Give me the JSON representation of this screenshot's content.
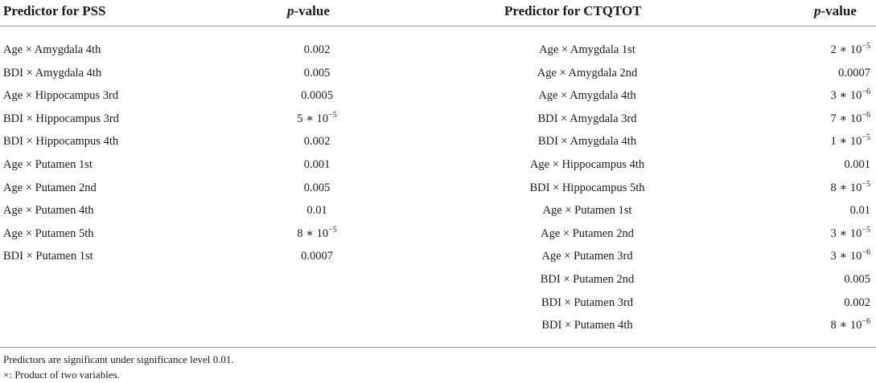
{
  "table": {
    "left": {
      "header_predictor": "Predictor for PSS",
      "header_p_italic": "p",
      "header_p_rest": "-value",
      "rows": [
        {
          "predictor": "Age × Amygdala 4th",
          "p": "0.002"
        },
        {
          "predictor": "BDI × Amygdala 4th",
          "p": "0.005"
        },
        {
          "predictor": "Age × Hippocampus 3rd",
          "p": "0.0005"
        },
        {
          "predictor": "BDI × Hippocampus 3rd",
          "p_base": "5 ∗ 10",
          "p_exp": "−5"
        },
        {
          "predictor": "BDI × Hippocampus 4th",
          "p": "0.002"
        },
        {
          "predictor": "Age × Putamen 1st",
          "p": "0.001"
        },
        {
          "predictor": "Age × Putamen 2nd",
          "p": "0.005"
        },
        {
          "predictor": "Age × Putamen 4th",
          "p": "0.01"
        },
        {
          "predictor": "Age × Putamen 5th",
          "p_base": "8 ∗ 10",
          "p_exp": "−5"
        },
        {
          "predictor": "BDI × Putamen 1st",
          "p": "0.0007"
        }
      ]
    },
    "right": {
      "header_predictor": "Predictor for CTQTOT",
      "header_p_italic": "p",
      "header_p_rest": "-value",
      "rows": [
        {
          "predictor": "Age × Amygdala 1st",
          "p_base": "2 ∗ 10",
          "p_exp": "−5"
        },
        {
          "predictor": "Age × Amygdala 2nd",
          "p": "0.0007"
        },
        {
          "predictor": "Age × Amygdala 4th",
          "p_base": "3 ∗ 10",
          "p_exp": "−6"
        },
        {
          "predictor": "BDI × Amygdala 3rd",
          "p_base": "7 ∗ 10",
          "p_exp": "−6"
        },
        {
          "predictor": "BDI × Amygdala 4th",
          "p_base": "1 ∗ 10",
          "p_exp": "−5"
        },
        {
          "predictor": "Age × Hippocampus 4th",
          "p": "0.001"
        },
        {
          "predictor": "BDI × Hippocampus 5th",
          "p_base": "8 ∗ 10",
          "p_exp": "−5"
        },
        {
          "predictor": "Age × Putamen 1st",
          "p": "0.01"
        },
        {
          "predictor": "Age × Putamen 2nd",
          "p_base": "3 ∗ 10",
          "p_exp": "−5"
        },
        {
          "predictor": "Age × Putamen 3rd",
          "p_base": "3 ∗ 10",
          "p_exp": "−6"
        },
        {
          "predictor": "BDI × Putamen 2nd",
          "p": "0.005"
        },
        {
          "predictor": "BDI × Putamen 3rd",
          "p": "0.002"
        },
        {
          "predictor": "BDI × Putamen 4th",
          "p_base": "8 ∗ 10",
          "p_exp": "−6"
        }
      ]
    }
  },
  "footnotes": [
    "Predictors are significant under significance level 0.01.",
    "×: Product of two variables."
  ]
}
